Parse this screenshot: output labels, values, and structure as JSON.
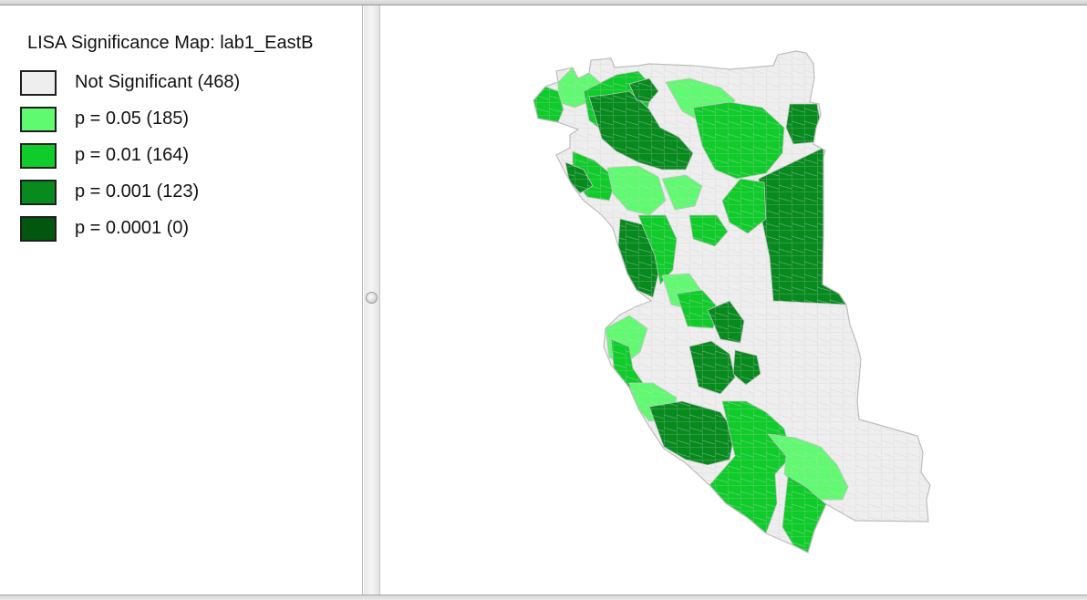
{
  "legend": {
    "title": "LISA Significance Map: lab1_EastB",
    "items": [
      {
        "label": "Not Significant (468)",
        "color": "#eeeeee"
      },
      {
        "label": "p = 0.05 (185)",
        "color": "#5ffa70"
      },
      {
        "label": "p = 0.01 (164)",
        "color": "#0fcc2a"
      },
      {
        "label": "p = 0.001 (123)",
        "color": "#078a1e"
      },
      {
        "label": "p = 0.0001 (0)",
        "color": "#025710"
      }
    ]
  },
  "map": {
    "boundary_color": "#c3c3c3"
  }
}
